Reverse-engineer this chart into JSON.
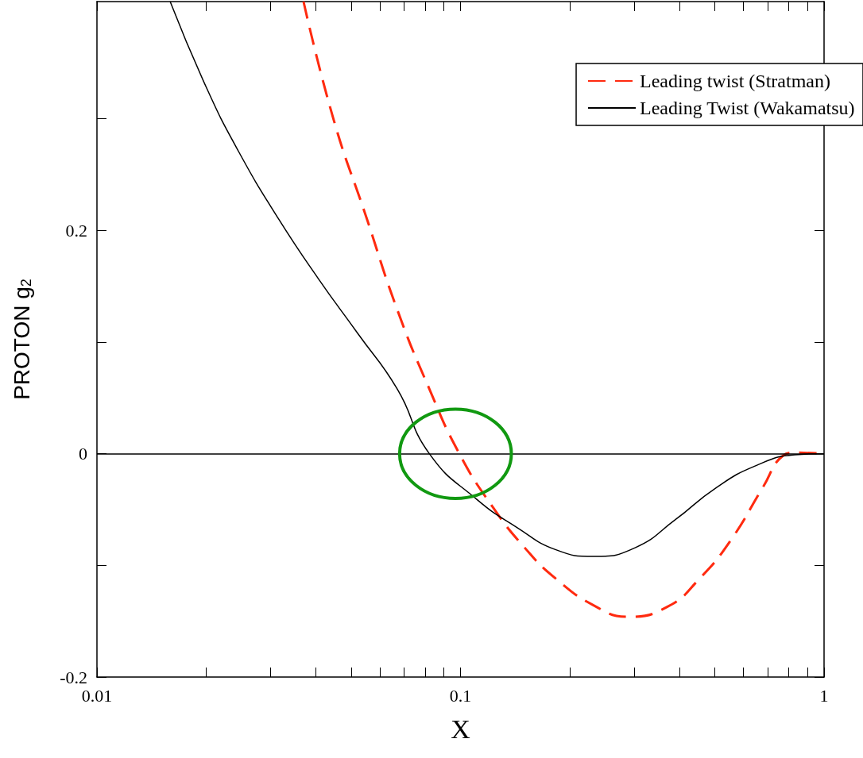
{
  "chart_data": {
    "type": "line",
    "xlabel": "X",
    "ylabel": "PROTON g$_{2}$",
    "log": "x",
    "xlim": [
      0.01,
      1
    ],
    "ylim": [
      -0.2,
      0.405
    ],
    "xticks": [
      0.01,
      {
        "value": 0.02,
        "label": null
      },
      {
        "value": 0.03,
        "label": null
      },
      {
        "value": 0.04,
        "label": null
      },
      {
        "value": 0.05,
        "label": null
      },
      {
        "value": 0.06,
        "label": null
      },
      {
        "value": 0.07,
        "label": null
      },
      {
        "value": 0.08,
        "label": null
      },
      {
        "value": 0.09,
        "label": null
      },
      0.1,
      {
        "value": 0.2,
        "label": null
      },
      {
        "value": 0.3,
        "label": null
      },
      {
        "value": 0.4,
        "label": null
      },
      {
        "value": 0.5,
        "label": null
      },
      {
        "value": 0.6,
        "label": null
      },
      {
        "value": 0.7,
        "label": null
      },
      {
        "value": 0.8,
        "label": null
      },
      {
        "value": 0.9,
        "label": null
      },
      1
    ],
    "yticks": [
      -0.2,
      {
        "value": -0.1,
        "label": null
      },
      0,
      {
        "value": 0.1,
        "label": null
      },
      0.2,
      {
        "value": 0.3,
        "label": null
      }
    ],
    "grid": false,
    "legend": "top right",
    "marker": "none",
    "ref_lines": [
      {
        "axis": "y",
        "value": 0,
        "color": "#000000",
        "line_style": "solid"
      }
    ],
    "series": [
      {
        "name": "Leading twist (Stratman)",
        "color": "#ff2a0f",
        "line_style": "dashed",
        "x": [
          0.037,
          0.0448,
          0.0548,
          0.067,
          0.0821,
          0.0993,
          0.1228,
          0.15,
          0.183,
          0.236,
          0.288,
          0.371,
          0.454,
          0.555,
          0.679,
          0.769,
          0.83,
          1
        ],
        "values": [
          0.405,
          0.299,
          0.214,
          0.129,
          0.058,
          0,
          -0.048,
          -0.084,
          -0.112,
          -0.137,
          -0.146,
          -0.137,
          -0.112,
          -0.077,
          -0.03,
          -0.002,
          0.001,
          0
        ]
      },
      {
        "name": "Leading Twist (Wakamatsu)",
        "color": "#000000",
        "line_style": "solid",
        "x": [
          0.0159,
          0.02,
          0.0245,
          0.0315,
          0.0406,
          0.0521,
          0.067,
          0.0821,
          0.111,
          0.143,
          0.183,
          0.233,
          0.303,
          0.39,
          0.502,
          0.646,
          0.83,
          1
        ],
        "values": [
          0.405,
          0.328,
          0.271,
          0.211,
          0.157,
          0.108,
          0.058,
          0,
          -0.041,
          -0.066,
          -0.086,
          -0.092,
          -0.084,
          -0.059,
          -0.031,
          -0.011,
          -0.001,
          0
        ]
      }
    ]
  }
}
